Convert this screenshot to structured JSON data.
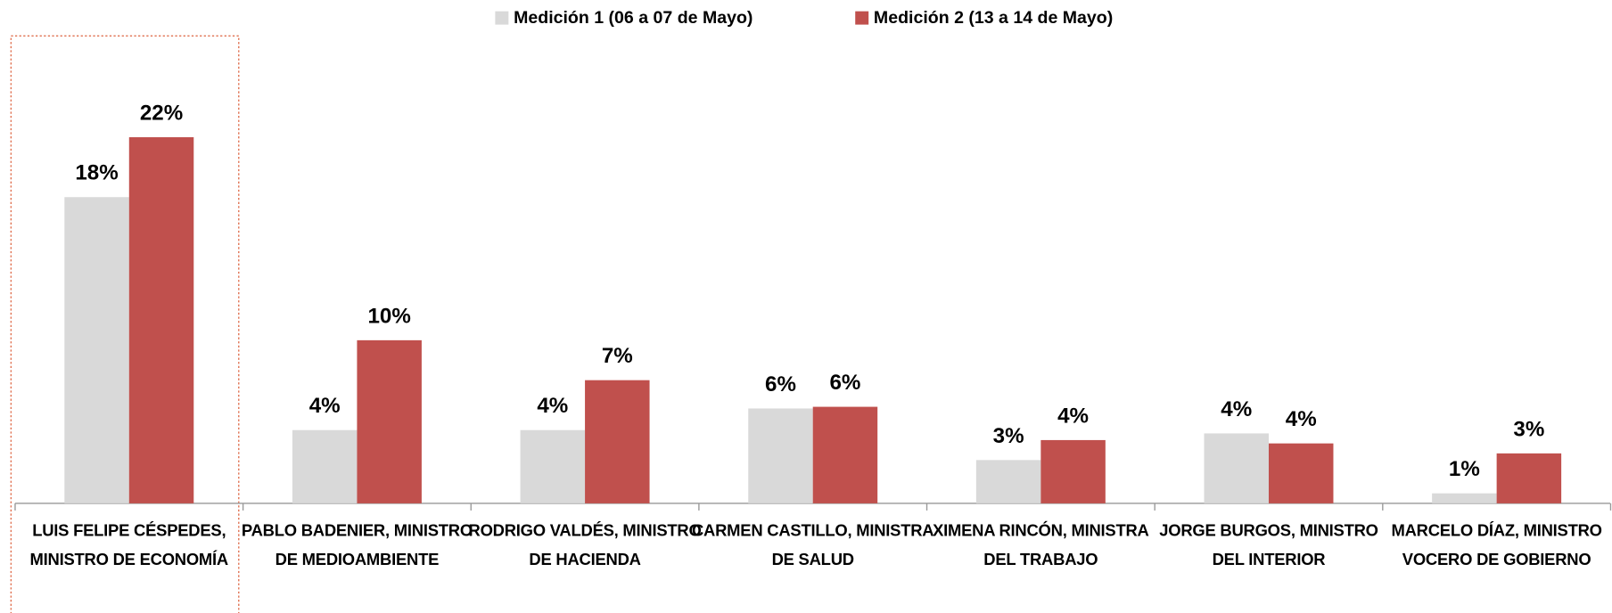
{
  "chart_data": {
    "type": "bar",
    "categories": [
      "LUIS FELIPE CÉSPEDES, MINISTRO DE ECONOMÍA",
      "PABLO BADENIER, MINISTRO DE MEDIOAMBIENTE",
      "RODRIGO VALDÉS, MINISTRO DE HACIENDA",
      "CARMEN CASTILLO, MINISTRA DE SALUD",
      "XIMENA RINCÓN, MINISTRA DEL TRABAJO",
      "JORGE BURGOS, MINISTRO DEL INTERIOR",
      "MARCELO DÍAZ, MINISTRO VOCERO DE GOBIERNO"
    ],
    "series": [
      {
        "name": "Medición 1 (06 a 07 de Mayo)",
        "color": "#d9d9d9",
        "values": [
          18.4,
          4.4,
          4.4,
          5.7,
          2.6,
          4.2,
          0.6
        ],
        "value_labels": [
          "18%",
          "4%",
          "4%",
          "6%",
          "3%",
          "4%",
          "1%"
        ]
      },
      {
        "name": "Medición 2 (13 a 14 de Mayo)",
        "color": "#c0504d",
        "values": [
          22,
          9.8,
          7.4,
          5.8,
          3.8,
          3.6,
          3.0
        ],
        "value_labels": [
          "22%",
          "10%",
          "7%",
          "6%",
          "4%",
          "4%",
          "3%"
        ]
      }
    ],
    "ylim": [
      0,
      30
    ],
    "legend": "top"
  }
}
